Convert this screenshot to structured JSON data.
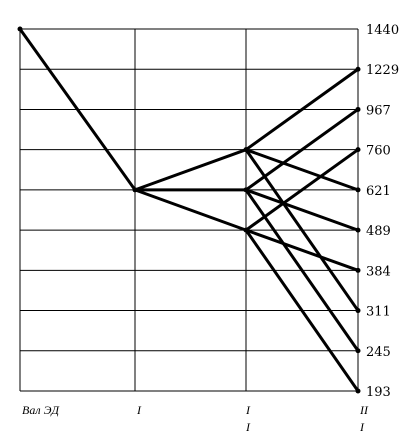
{
  "speeds": [
    "1440",
    "1229",
    "967",
    "760",
    "621",
    "489",
    "384",
    "311",
    "245",
    "193"
  ],
  "shafts": [
    {
      "label": "Вал ЭД",
      "sub": ""
    },
    {
      "label": "I",
      "sub": ""
    },
    {
      "label": "I",
      "sub": "I"
    },
    {
      "label": "II",
      "sub": "I"
    }
  ],
  "rays": [
    {
      "from": [
        0,
        "1440"
      ],
      "to": [
        1,
        "621"
      ]
    },
    {
      "from": [
        1,
        "621"
      ],
      "to": [
        2,
        "760"
      ]
    },
    {
      "from": [
        1,
        "621"
      ],
      "to": [
        2,
        "621"
      ]
    },
    {
      "from": [
        1,
        "621"
      ],
      "to": [
        2,
        "489"
      ]
    },
    {
      "from": [
        2,
        "760"
      ],
      "to": [
        3,
        "1229"
      ]
    },
    {
      "from": [
        2,
        "760"
      ],
      "to": [
        3,
        "621"
      ]
    },
    {
      "from": [
        2,
        "760"
      ],
      "to": [
        3,
        "311"
      ]
    },
    {
      "from": [
        2,
        "621"
      ],
      "to": [
        3,
        "967"
      ]
    },
    {
      "from": [
        2,
        "621"
      ],
      "to": [
        3,
        "489"
      ]
    },
    {
      "from": [
        2,
        "621"
      ],
      "to": [
        3,
        "245"
      ]
    },
    {
      "from": [
        2,
        "489"
      ],
      "to": [
        3,
        "760"
      ]
    },
    {
      "from": [
        2,
        "489"
      ],
      "to": [
        3,
        "384"
      ]
    },
    {
      "from": [
        2,
        "489"
      ],
      "to": [
        3,
        "193"
      ]
    }
  ]
}
